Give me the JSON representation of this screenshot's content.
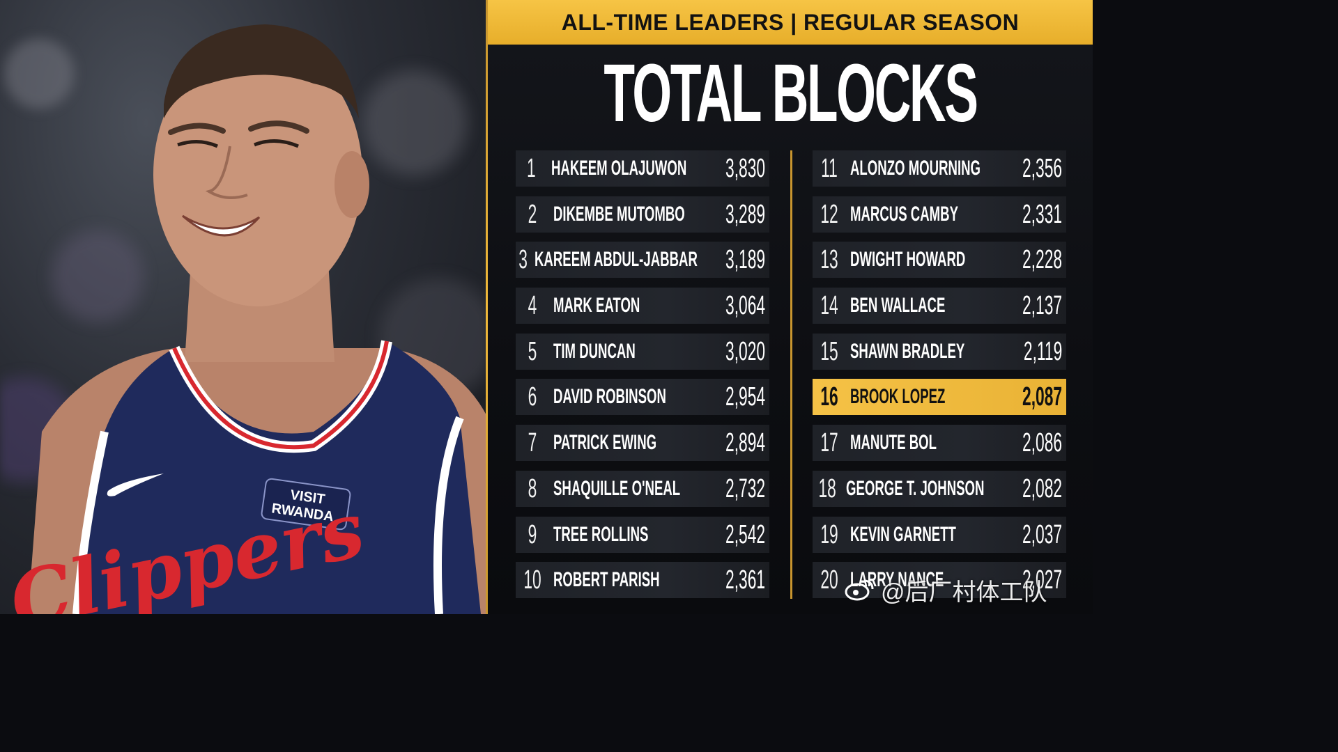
{
  "banner": "ALL-TIME LEADERS | REGULAR SEASON",
  "title": "TOTAL BLOCKS",
  "jersey": {
    "sponsor": "VISIT RWANDA",
    "team": "Clippers"
  },
  "accent_color": "#f0b93a",
  "left_column": [
    {
      "rank": "1",
      "name": "HAKEEM OLAJUWON",
      "value": "3,830"
    },
    {
      "rank": "2",
      "name": "DIKEMBE MUTOMBO",
      "value": "3,289"
    },
    {
      "rank": "3",
      "name": "KAREEM ABDUL-JABBAR",
      "value": "3,189"
    },
    {
      "rank": "4",
      "name": "MARK EATON",
      "value": "3,064"
    },
    {
      "rank": "5",
      "name": "TIM DUNCAN",
      "value": "3,020"
    },
    {
      "rank": "6",
      "name": "DAVID ROBINSON",
      "value": "2,954"
    },
    {
      "rank": "7",
      "name": "PATRICK EWING",
      "value": "2,894"
    },
    {
      "rank": "8",
      "name": "SHAQUILLE O'NEAL",
      "value": "2,732"
    },
    {
      "rank": "9",
      "name": "TREE ROLLINS",
      "value": "2,542"
    },
    {
      "rank": "10",
      "name": "ROBERT PARISH",
      "value": "2,361"
    }
  ],
  "right_column": [
    {
      "rank": "11",
      "name": "ALONZO MOURNING",
      "value": "2,356"
    },
    {
      "rank": "12",
      "name": "MARCUS CAMBY",
      "value": "2,331"
    },
    {
      "rank": "13",
      "name": "DWIGHT HOWARD",
      "value": "2,228"
    },
    {
      "rank": "14",
      "name": "BEN WALLACE",
      "value": "2,137"
    },
    {
      "rank": "15",
      "name": "SHAWN BRADLEY",
      "value": "2,119"
    },
    {
      "rank": "16",
      "name": "BROOK LOPEZ",
      "value": "2,087",
      "highlight": true
    },
    {
      "rank": "17",
      "name": "MANUTE BOL",
      "value": "2,086"
    },
    {
      "rank": "18",
      "name": "GEORGE T. JOHNSON",
      "value": "2,082"
    },
    {
      "rank": "19",
      "name": "KEVIN GARNETT",
      "value": "2,037"
    },
    {
      "rank": "20",
      "name": "LARRY NANCE",
      "value": "2,027"
    }
  ],
  "watermark": "@后厂村体工队"
}
